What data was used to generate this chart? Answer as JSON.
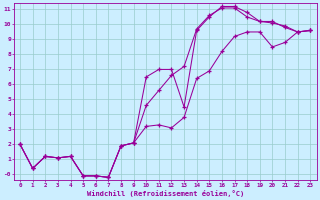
{
  "title": "",
  "xlabel": "Windchill (Refroidissement éolien,°C)",
  "bg_color": "#cceeff",
  "line_color": "#990099",
  "grid_color": "#99cccc",
  "xlim": [
    -0.5,
    23.5
  ],
  "ylim": [
    -0.4,
    11.4
  ],
  "xticks": [
    0,
    1,
    2,
    3,
    4,
    5,
    6,
    7,
    8,
    9,
    10,
    11,
    12,
    13,
    14,
    15,
    16,
    17,
    18,
    19,
    20,
    21,
    22,
    23
  ],
  "yticks": [
    0,
    1,
    2,
    3,
    4,
    5,
    6,
    7,
    8,
    9,
    10,
    11
  ],
  "ytick_labels": [
    "-0",
    "1",
    "2",
    "3",
    "4",
    "5",
    "6",
    "7",
    "8",
    "9",
    "10",
    "11"
  ],
  "line1_x": [
    0,
    1,
    2,
    3,
    4,
    5,
    6,
    7,
    8,
    9,
    10,
    11,
    12,
    13,
    14,
    15,
    16,
    17,
    18,
    19,
    20,
    21,
    22,
    23
  ],
  "line1_y": [
    2.0,
    0.4,
    1.2,
    1.1,
    1.2,
    -0.1,
    -0.1,
    -0.2,
    1.9,
    2.1,
    6.5,
    7.0,
    7.0,
    4.5,
    9.6,
    10.5,
    11.2,
    11.2,
    10.8,
    10.2,
    10.2,
    9.8,
    9.5,
    9.6
  ],
  "line2_x": [
    0,
    1,
    2,
    3,
    4,
    5,
    6,
    7,
    8,
    9,
    10,
    11,
    12,
    13,
    14,
    15,
    16,
    17,
    18,
    19,
    20,
    21,
    22,
    23
  ],
  "line2_y": [
    2.0,
    0.4,
    1.2,
    1.1,
    1.2,
    -0.1,
    -0.1,
    -0.2,
    1.9,
    2.1,
    4.6,
    5.6,
    6.6,
    7.2,
    9.7,
    10.6,
    11.1,
    11.1,
    10.5,
    10.2,
    10.1,
    9.9,
    9.5,
    9.6
  ],
  "line3_x": [
    0,
    1,
    2,
    3,
    4,
    5,
    6,
    7,
    8,
    9,
    10,
    11,
    12,
    13,
    14,
    15,
    16,
    17,
    18,
    19,
    20,
    21,
    22,
    23
  ],
  "line3_y": [
    2.0,
    0.4,
    1.2,
    1.1,
    1.2,
    -0.1,
    -0.1,
    -0.2,
    1.9,
    2.1,
    3.2,
    3.3,
    3.1,
    3.8,
    6.4,
    6.9,
    8.2,
    9.2,
    9.5,
    9.5,
    8.5,
    8.8,
    9.5,
    9.6
  ]
}
